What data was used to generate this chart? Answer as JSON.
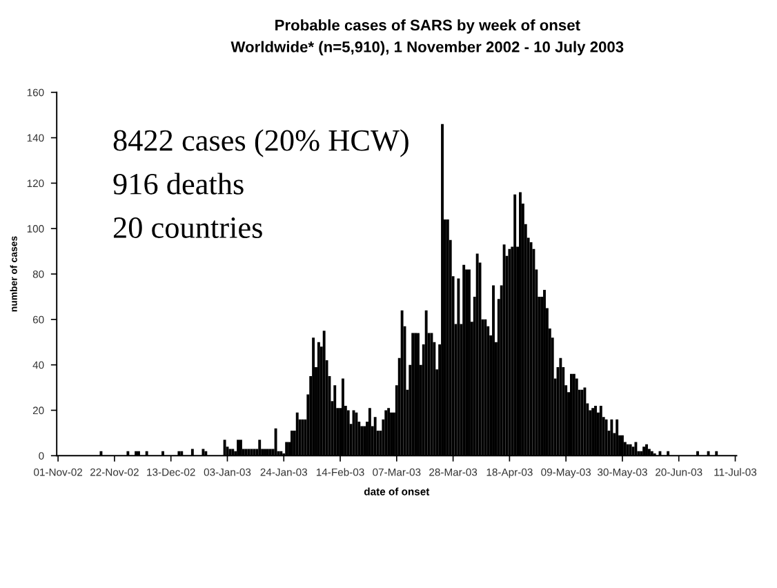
{
  "chart_data": {
    "type": "bar",
    "title": "Probable cases of SARS by week of onset",
    "subtitle": "Worldwide* (n=5,910), 1 November 2002 - 10 July 2003",
    "xlabel": "date of onset",
    "ylabel": "number of cases",
    "annotations": [
      "8422 cases (20% HCW)",
      "916 deaths",
      "20 countries"
    ],
    "categories": [
      "01-Nov-02",
      null,
      null,
      null,
      null,
      null,
      null,
      null,
      null,
      null,
      null,
      null,
      null,
      null,
      null,
      null,
      null,
      null,
      null,
      null,
      null,
      "22-Nov-02",
      null,
      null,
      null,
      null,
      null,
      null,
      null,
      null,
      null,
      null,
      null,
      null,
      null,
      null,
      null,
      null,
      null,
      null,
      null,
      null,
      "13-Dec-02",
      null,
      null,
      null,
      null,
      null,
      null,
      null,
      null,
      null,
      null,
      null,
      null,
      null,
      null,
      null,
      null,
      null,
      null,
      null,
      null,
      "03-Jan-03",
      null,
      null,
      null,
      null,
      null,
      null,
      null,
      null,
      null,
      null,
      null,
      null,
      null,
      null,
      null,
      null,
      null,
      null,
      null,
      null,
      "24-Jan-03",
      null,
      null,
      null,
      null,
      null,
      null,
      null,
      null,
      null,
      null,
      null,
      null,
      null,
      null,
      null,
      null,
      null,
      null,
      null,
      null,
      "14-Feb-03",
      null,
      null,
      null,
      null,
      null,
      null,
      null,
      null,
      null,
      null,
      null,
      null,
      null,
      null,
      null,
      null,
      null,
      null,
      null,
      null,
      "07-Mar-03",
      null,
      null,
      null,
      null,
      null,
      null,
      null,
      null,
      null,
      null,
      null,
      null,
      null,
      null,
      null,
      null,
      null,
      null,
      null,
      null,
      "28-Mar-03",
      null,
      null,
      null,
      null,
      null,
      null,
      null,
      null,
      null,
      null,
      null,
      null,
      null,
      null,
      null,
      null,
      null,
      null,
      null,
      null,
      "18-Apr-03",
      null,
      null,
      null,
      null,
      null,
      null,
      null,
      null,
      null,
      null,
      null,
      null,
      null,
      null,
      null,
      null,
      null,
      null,
      null,
      null,
      "09-May-03",
      null,
      null,
      null,
      null,
      null,
      null,
      null,
      null,
      null,
      null,
      null,
      null,
      null,
      null,
      null,
      null,
      null,
      null,
      null,
      null,
      "30-May-03",
      null,
      null,
      null,
      null,
      null,
      null,
      null,
      null,
      null,
      null,
      null,
      null,
      null,
      null,
      null,
      null,
      null,
      null,
      null,
      null,
      "20-Jun-03",
      null,
      null,
      null,
      null,
      null,
      null,
      null,
      null,
      null,
      null,
      null,
      null,
      null,
      null,
      null,
      null,
      null,
      null,
      null,
      null,
      "11-Jul-03"
    ],
    "values": [
      0,
      0,
      0,
      0,
      0,
      0,
      0,
      0,
      0,
      0,
      0,
      0,
      0,
      0,
      0,
      0,
      2,
      0,
      0,
      0,
      0,
      0,
      0,
      0,
      0,
      0,
      2,
      0,
      0,
      2,
      2,
      0,
      0,
      2,
      0,
      0,
      0,
      0,
      0,
      2,
      0,
      0,
      0,
      0,
      0,
      2,
      2,
      0,
      0,
      0,
      3,
      0,
      0,
      0,
      3,
      2,
      0,
      0,
      0,
      0,
      0,
      0,
      7,
      4,
      3,
      3,
      2,
      7,
      7,
      3,
      3,
      3,
      3,
      3,
      3,
      7,
      3,
      3,
      3,
      3,
      3,
      12,
      2,
      2,
      1,
      6,
      6,
      11,
      11,
      19,
      16,
      16,
      16,
      27,
      35,
      52,
      39,
      50,
      48,
      55,
      42,
      35,
      24,
      31,
      21,
      21,
      34,
      22,
      20,
      14,
      20,
      19,
      15,
      13,
      13,
      15,
      21,
      13,
      17,
      11,
      11,
      16,
      20,
      21,
      19,
      19,
      31,
      43,
      64,
      57,
      29,
      40,
      54,
      54,
      54,
      40,
      49,
      64,
      54,
      54,
      50,
      38,
      49,
      146,
      104,
      104,
      95,
      79,
      58,
      78,
      58,
      84,
      82,
      82,
      59,
      70,
      89,
      85,
      60,
      60,
      57,
      53,
      75,
      50,
      69,
      75,
      93,
      88,
      91,
      92,
      115,
      92,
      116,
      111,
      102,
      96,
      94,
      91,
      82,
      70,
      70,
      73,
      65,
      56,
      52,
      34,
      39,
      43,
      39,
      31,
      28,
      36,
      36,
      34,
      29,
      29,
      30,
      23,
      20,
      21,
      22,
      19,
      22,
      17,
      16,
      11,
      16,
      10,
      16,
      9,
      9,
      6,
      5,
      5,
      4,
      6,
      2,
      2,
      4,
      5,
      3,
      2,
      1,
      0,
      2,
      0,
      0,
      2,
      0,
      0,
      0,
      0,
      0,
      0,
      0,
      0,
      0,
      0,
      2,
      0,
      0,
      0,
      2,
      0,
      0,
      2,
      0,
      0,
      0,
      0,
      0,
      0,
      0
    ],
    "color": "#000000",
    "ylim": [
      0,
      160
    ],
    "yticks": [
      0,
      20,
      40,
      60,
      80,
      100,
      120,
      140,
      160
    ],
    "grid": false,
    "legend": false
  }
}
